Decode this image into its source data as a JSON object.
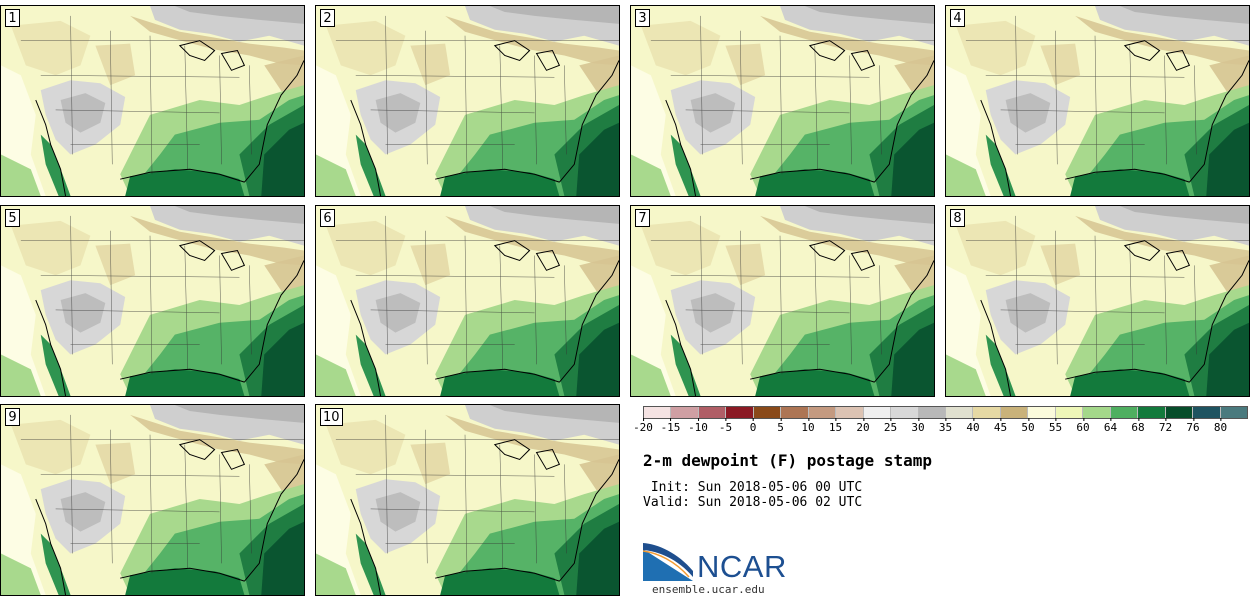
{
  "title": "2-m dewpoint (F) postage stamp",
  "init_label": "Init:",
  "init_time": "Sun 2018-05-06 00 UTC",
  "valid_label": "Valid:",
  "valid_time": "Sun 2018-05-06 02 UTC",
  "panels": [
    {
      "label": "1"
    },
    {
      "label": "2"
    },
    {
      "label": "3"
    },
    {
      "label": "4"
    },
    {
      "label": "5"
    },
    {
      "label": "6"
    },
    {
      "label": "7"
    },
    {
      "label": "8"
    },
    {
      "label": "9"
    },
    {
      "label": "10"
    }
  ],
  "colorbar": {
    "ticks": [
      "-20",
      "-15",
      "-10",
      "-5",
      "0",
      "5",
      "10",
      "15",
      "20",
      "25",
      "30",
      "35",
      "40",
      "45",
      "50",
      "55",
      "60",
      "64",
      "68",
      "72",
      "76",
      "80"
    ],
    "colors": [
      "#f5e3e3",
      "#cf9fa3",
      "#b05e66",
      "#8b1a24",
      "#8a4a1a",
      "#ad7554",
      "#c49a80",
      "#dcc3b3",
      "#efefef",
      "#d8d8d8",
      "#b8b8b8",
      "#e0e0cf",
      "#e6d9a4",
      "#c9b27a",
      "#fbfbdc",
      "#eef7b8",
      "#a4d88a",
      "#4faf60",
      "#137a3c",
      "#064d2a",
      "#1e5360",
      "#4a7a7e"
    ]
  },
  "logo": {
    "name": "NCAR",
    "site": "ensemble.ucar.edu"
  }
}
